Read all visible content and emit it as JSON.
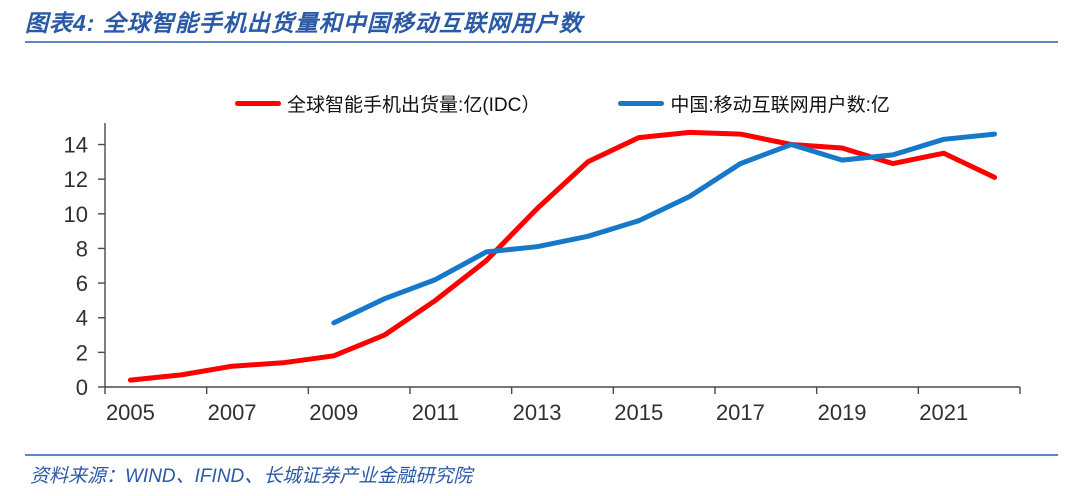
{
  "header": {
    "title": "图表4:  全球智能手机出货量和中国移动互联网用户数"
  },
  "footer": {
    "source": "资料来源：WIND、IFIND、长城证券产业金融研究院"
  },
  "style": {
    "title_color": "#2B5AA5",
    "rule_color": "#5E87C5",
    "source_color": "#2B5AA5",
    "axis_color": "#4A4A4A",
    "tick_label_color": "#303030",
    "background": "#FFFFFF",
    "red_line": "#FE0000",
    "blue_line": "#1777C8"
  },
  "chart_data": {
    "type": "line",
    "title": "图表4: 全球智能手机出货量和中国移动互联网用户数",
    "xlabel": "",
    "ylabel": "",
    "x": [
      2005,
      2006,
      2007,
      2008,
      2009,
      2010,
      2011,
      2012,
      2013,
      2014,
      2015,
      2016,
      2017,
      2018,
      2019,
      2020,
      2021,
      2022
    ],
    "xtick_labels": [
      "2005",
      "2007",
      "2009",
      "2011",
      "2013",
      "2015",
      "2017",
      "2019",
      "2021"
    ],
    "ylim": [
      0,
      14
    ],
    "ytick_interval": 2,
    "ytick_labels": [
      "0",
      "2",
      "4",
      "6",
      "8",
      "10",
      "12",
      "14"
    ],
    "grid": false,
    "legend_position": "top",
    "series": [
      {
        "name": "全球智能手机出货量:亿(IDC）",
        "color": "#FE0000",
        "start_x": 2005,
        "values": [
          0.4,
          0.7,
          1.2,
          1.4,
          1.8,
          3.0,
          5.0,
          7.3,
          10.3,
          13.0,
          14.4,
          14.7,
          14.6,
          14.0,
          13.8,
          12.9,
          13.5,
          12.1
        ]
      },
      {
        "name": "中国:移动互联网用户数:亿",
        "color": "#1777C8",
        "start_x": 2009,
        "values": [
          3.7,
          5.1,
          6.2,
          7.8,
          8.1,
          8.7,
          9.6,
          11.0,
          12.9,
          14.0,
          13.1,
          13.4,
          14.3,
          14.6
        ]
      }
    ]
  }
}
